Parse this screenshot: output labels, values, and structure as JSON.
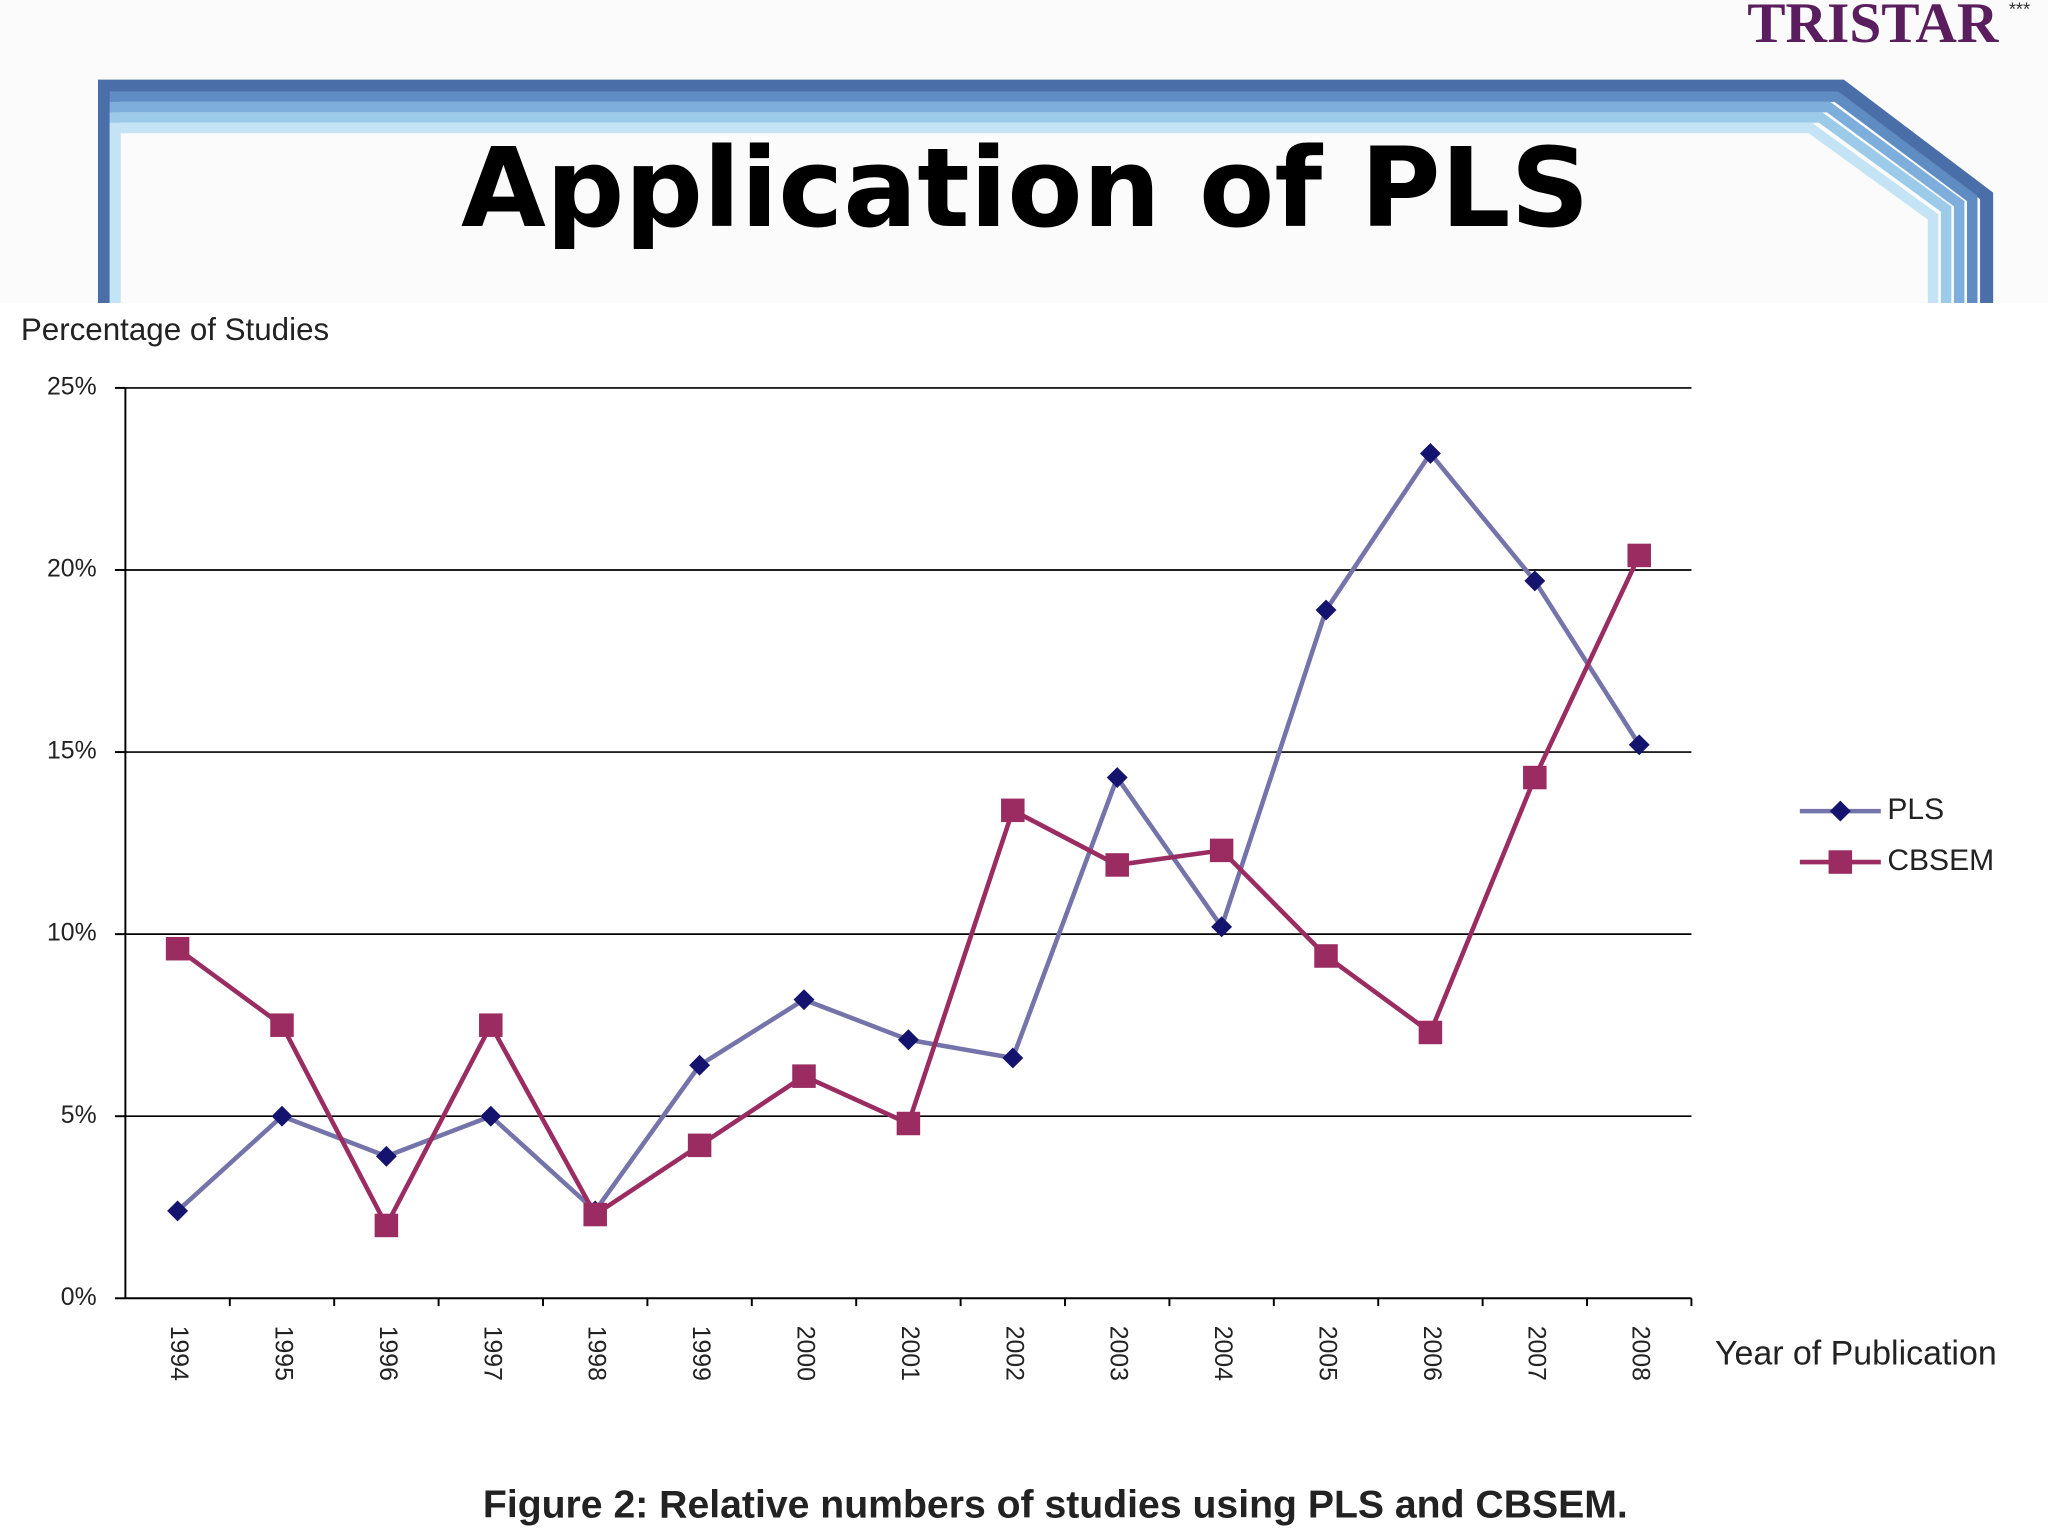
{
  "header": {
    "title": "Application of PLS",
    "logo": "TRISTAR",
    "logo_mark": "***"
  },
  "chart_data": {
    "type": "line",
    "y_label": "Percentage of Studies",
    "x_label": "Year of Publication",
    "caption": "Figure 2: Relative numbers of studies using PLS and CBSEM.",
    "categories": [
      "1994",
      "1995",
      "1996",
      "1997",
      "1998",
      "1999",
      "2000",
      "2001",
      "2002",
      "2003",
      "2004",
      "2005",
      "2006",
      "2007",
      "2008"
    ],
    "series": [
      {
        "name": "PLS",
        "color": "#7474aa",
        "marker": "diamond",
        "marker_color": "#14146e",
        "values": [
          2.4,
          5.0,
          3.9,
          5.0,
          2.4,
          6.4,
          8.2,
          7.1,
          6.6,
          14.3,
          10.2,
          18.9,
          23.2,
          19.7,
          15.2
        ]
      },
      {
        "name": "CBSEM",
        "color": "#9a2c62",
        "marker": "square",
        "marker_color": "#9a2c62",
        "values": [
          9.6,
          7.5,
          2.0,
          7.5,
          2.3,
          4.2,
          6.1,
          4.8,
          13.4,
          11.9,
          12.3,
          9.4,
          7.3,
          14.3,
          20.4
        ]
      }
    ],
    "ylim": [
      0,
      25
    ],
    "yticks": [
      {
        "value": 0,
        "label": "0%"
      },
      {
        "value": 5,
        "label": "5%"
      },
      {
        "value": 10,
        "label": "10%"
      },
      {
        "value": 15,
        "label": "15%"
      },
      {
        "value": 20,
        "label": "20%"
      },
      {
        "value": 25,
        "label": "25%"
      }
    ],
    "grid": true,
    "legend": "right"
  }
}
